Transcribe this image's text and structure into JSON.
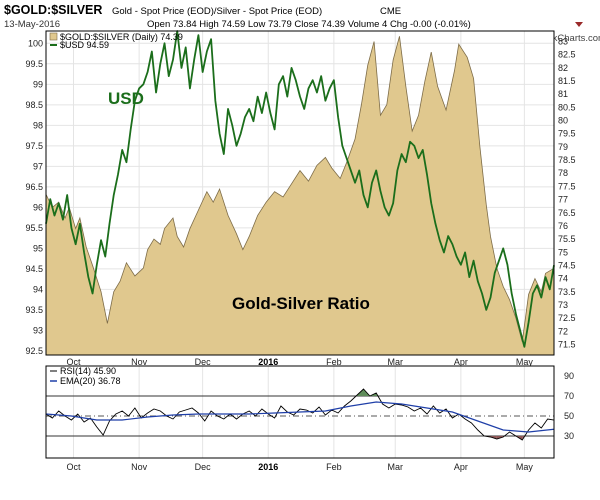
{
  "header": {
    "title": "$GOLD:$SILVER",
    "subtitle": "Gold - Spot Price (EOD)/Silver - Spot Price (EOD)",
    "exchange": "CME",
    "date": "13-May-2016",
    "ohlc": "Open 73.84  High 74.59  Low 73.79  Close 74.39  Volume 4  Chg -0.00 (-0.01%)",
    "credit": "© StockCharts.com"
  },
  "annotations": {
    "usd": "USD",
    "ratio": "Gold-Silver Ratio"
  },
  "colors": {
    "ratio_fill": "#e0c88e",
    "ratio_line": "#7d6c48",
    "usd_line": "#1b6e1b",
    "rsi_line": "#000000",
    "ema_line": "#1f3fa8",
    "overbought_fill": "#5f8c5a",
    "oversold_fill": "#8e5656",
    "grid": "#e4e4e4"
  },
  "chart_data": [
    {
      "type": "area",
      "x_labels": [
        "Oct",
        "Nov",
        "Dec",
        "2016",
        "Feb",
        "Mar",
        "Apr",
        "May"
      ],
      "x_label_days": [
        13,
        44,
        74,
        105,
        136,
        165,
        196,
        226
      ],
      "x_range": [
        0,
        240
      ],
      "legend": [
        {
          "label": "$GOLD:$SILVER (Daily) 74.39",
          "series": "ratio"
        },
        {
          "label": "$USD 94.59",
          "series": "usd"
        }
      ],
      "right_axis": {
        "ticks": [
          71.5,
          72.0,
          72.5,
          73.0,
          73.5,
          74.0,
          74.5,
          75.0,
          75.5,
          76.0,
          76.5,
          77.0,
          77.5,
          78.0,
          78.5,
          79.0,
          79.5,
          80.0,
          80.5,
          81.0,
          81.5,
          82.0,
          82.5,
          83.0
        ],
        "ylim": [
          71.1,
          83.4
        ]
      },
      "left_axis": {
        "ticks": [
          92.5,
          93.0,
          93.5,
          94.0,
          94.5,
          95.0,
          95.5,
          96.0,
          96.5,
          97.0,
          97.5,
          98.0,
          98.5,
          99.0,
          99.5,
          100.0
        ],
        "ylim": [
          92.4,
          100.3
        ]
      },
      "series": [
        {
          "name": "$GOLD:$SILVER",
          "axis": "right",
          "style": "area",
          "x": [
            0,
            3,
            6,
            9,
            11,
            14,
            16,
            19,
            22,
            26,
            29,
            32,
            35,
            38,
            42,
            46,
            48,
            51,
            54,
            56,
            60,
            62,
            65,
            68,
            72,
            76,
            79,
            82,
            86,
            90,
            93,
            96,
            100,
            104,
            108,
            112,
            116,
            120,
            124,
            128,
            132,
            135,
            139,
            142,
            146,
            149,
            152,
            155,
            158,
            161,
            164,
            167,
            170,
            173,
            176,
            179,
            182,
            185,
            189,
            193,
            195,
            199,
            202,
            205,
            208,
            210,
            213,
            216,
            219,
            222,
            225,
            228,
            231,
            234,
            236,
            240
          ],
          "y": [
            77.2,
            76.7,
            76.9,
            76.3,
            76.7,
            75.9,
            76.3,
            75.2,
            74.5,
            73.5,
            72.3,
            73.5,
            73.9,
            74.6,
            74.1,
            74.4,
            75.1,
            75.5,
            75.3,
            75.9,
            76.3,
            75.6,
            75.2,
            75.9,
            76.6,
            77.3,
            76.9,
            77.4,
            76.4,
            75.7,
            75.1,
            75.6,
            76.4,
            76.9,
            77.3,
            77.1,
            77.6,
            78.1,
            77.7,
            78.3,
            78.6,
            78.2,
            77.8,
            78.4,
            79.3,
            80.6,
            82.1,
            83.0,
            80.2,
            80.6,
            82.3,
            83.2,
            81.3,
            79.6,
            80.2,
            81.5,
            82.6,
            81.3,
            80.4,
            81.9,
            82.9,
            82.4,
            81.6,
            79.0,
            76.8,
            75.6,
            74.4,
            73.7,
            73.2,
            72.5,
            71.6,
            73.4,
            74.0,
            73.5,
            74.2,
            74.39
          ]
        },
        {
          "name": "$USD",
          "axis": "left",
          "style": "line",
          "x": [
            0,
            2,
            4,
            6,
            8,
            10,
            12,
            14,
            16,
            18,
            20,
            22,
            24,
            26,
            28,
            30,
            32,
            34,
            36,
            38,
            40,
            42,
            44,
            46,
            48,
            50,
            52,
            54,
            56,
            58,
            60,
            62,
            64,
            66,
            68,
            70,
            72,
            74,
            76,
            78,
            80,
            82,
            84,
            86,
            88,
            90,
            92,
            94,
            96,
            98,
            100,
            102,
            104,
            106,
            108,
            110,
            112,
            114,
            116,
            118,
            120,
            122,
            124,
            126,
            128,
            130,
            132,
            134,
            136,
            138,
            140,
            142,
            144,
            146,
            148,
            150,
            152,
            154,
            156,
            158,
            160,
            162,
            164,
            166,
            168,
            170,
            172,
            174,
            176,
            178,
            180,
            182,
            184,
            186,
            188,
            190,
            192,
            194,
            196,
            198,
            200,
            202,
            204,
            206,
            208,
            210,
            212,
            214,
            216,
            218,
            220,
            222,
            224,
            226,
            228,
            230,
            232,
            234,
            236,
            238,
            240
          ],
          "y": [
            95.6,
            96.2,
            95.8,
            96.1,
            95.7,
            96.3,
            95.5,
            95.1,
            95.6,
            94.9,
            94.3,
            93.9,
            94.6,
            95.2,
            94.8,
            95.6,
            96.3,
            96.8,
            97.4,
            97.1,
            97.9,
            98.6,
            98.9,
            99.0,
            99.3,
            99.8,
            98.8,
            99.5,
            100.0,
            99.2,
            99.6,
            100.3,
            99.4,
            99.9,
            98.9,
            99.6,
            100.2,
            99.3,
            99.8,
            100.1,
            98.6,
            97.8,
            97.3,
            98.4,
            98.0,
            97.5,
            97.8,
            98.2,
            98.4,
            98.1,
            98.7,
            98.3,
            98.8,
            98.3,
            97.9,
            99.0,
            99.2,
            98.7,
            99.4,
            99.1,
            98.7,
            98.4,
            98.9,
            99.1,
            98.8,
            99.2,
            98.6,
            98.9,
            99.1,
            98.2,
            97.5,
            97.2,
            96.9,
            96.6,
            96.9,
            96.3,
            96.0,
            96.6,
            96.9,
            96.4,
            96.0,
            95.8,
            96.1,
            96.9,
            97.3,
            97.1,
            97.6,
            97.5,
            97.2,
            97.4,
            96.8,
            96.1,
            95.6,
            95.2,
            94.9,
            95.3,
            95.1,
            94.8,
            94.6,
            94.9,
            94.3,
            94.7,
            94.2,
            93.9,
            93.5,
            93.8,
            94.4,
            94.7,
            95.0,
            94.6,
            93.9,
            93.4,
            93.0,
            92.6,
            93.2,
            93.9,
            94.1,
            93.8,
            94.3,
            94.0,
            94.59
          ]
        }
      ]
    },
    {
      "type": "line",
      "title": "RSI(14) 45.90",
      "x_labels": [
        "Oct",
        "Nov",
        "Dec",
        "2016",
        "Feb",
        "Mar",
        "Apr",
        "May"
      ],
      "x_range": [
        0,
        240
      ],
      "legend": [
        {
          "label": "RSI(14) 45.90",
          "series": "rsi"
        },
        {
          "label": "EMA(20) 36.78",
          "series": "ema"
        }
      ],
      "y_ticks": [
        30,
        50,
        70,
        90
      ],
      "ylim": [
        8,
        100
      ],
      "reference_lines": [
        30,
        50,
        70
      ],
      "series": [
        {
          "name": "RSI(14)",
          "x": [
            0,
            3,
            6,
            9,
            12,
            15,
            18,
            21,
            24,
            27,
            30,
            33,
            36,
            39,
            42,
            45,
            48,
            51,
            54,
            57,
            60,
            63,
            66,
            69,
            72,
            75,
            78,
            81,
            84,
            87,
            90,
            93,
            96,
            99,
            102,
            105,
            108,
            111,
            114,
            117,
            120,
            123,
            126,
            129,
            132,
            135,
            138,
            141,
            144,
            147,
            150,
            153,
            156,
            159,
            162,
            165,
            168,
            171,
            174,
            177,
            180,
            183,
            186,
            189,
            192,
            195,
            198,
            201,
            204,
            207,
            210,
            213,
            216,
            219,
            222,
            225,
            228,
            231,
            234,
            237,
            240
          ],
          "y": [
            52,
            48,
            55,
            50,
            46,
            52,
            44,
            48,
            39,
            31,
            45,
            52,
            55,
            50,
            58,
            48,
            53,
            57,
            55,
            50,
            47,
            54,
            56,
            58,
            53,
            45,
            55,
            50,
            47,
            52,
            47,
            52,
            55,
            50,
            57,
            52,
            48,
            60,
            54,
            51,
            57,
            56,
            53,
            59,
            51,
            56,
            53,
            60,
            65,
            71,
            77,
            70,
            73,
            62,
            58,
            62,
            61,
            59,
            55,
            58,
            52,
            60,
            53,
            57,
            48,
            52,
            47,
            43,
            36,
            30,
            29,
            27,
            29,
            34,
            30,
            26,
            36,
            43,
            38,
            47,
            45.9
          ]
        },
        {
          "name": "EMA(20)",
          "x": [
            0,
            12,
            24,
            36,
            48,
            60,
            72,
            84,
            96,
            108,
            120,
            132,
            144,
            156,
            168,
            180,
            192,
            204,
            216,
            228,
            240
          ],
          "y": [
            52,
            50,
            46,
            46,
            49,
            51,
            52,
            52,
            52,
            53,
            54,
            55,
            60,
            64,
            62,
            58,
            54,
            45,
            36,
            34,
            36.78
          ]
        }
      ]
    }
  ]
}
